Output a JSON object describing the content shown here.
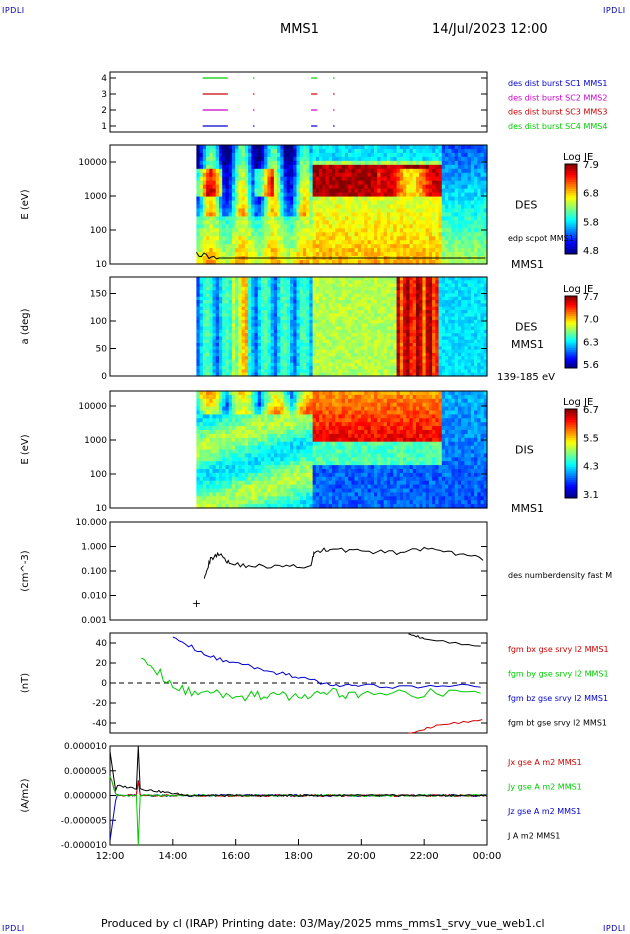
{
  "header": {
    "corner_label": "IPDLI",
    "title": "MMS1",
    "datetime": "14/Jul/2023 12:00"
  },
  "footer": {
    "text": "Produced by cl (IRAP)   Printing date: 03/May/2025   mms_mms1_srvy_vue_web1.cl"
  },
  "chart_data": [
    {
      "type": "line",
      "panel": "burst-availability",
      "yticks": [
        "1",
        "2",
        "3",
        "4"
      ],
      "x_range": [
        "12:00",
        "00:00"
      ],
      "series": [
        {
          "name": "des dist burst SC1 MMS1",
          "color": "#0000cc",
          "level": 1
        },
        {
          "name": "des dist burst SC2 MMS2",
          "color": "#cc00cc",
          "level": 2
        },
        {
          "name": "des dist burst SC3 MMS3",
          "color": "#cc0000",
          "level": 3
        },
        {
          "name": "des dist burst SC4 MMS4",
          "color": "#00cc00",
          "level": 4
        }
      ],
      "intervals_hours": [
        [
          14.95,
          15.75
        ],
        [
          16.55,
          16.6
        ],
        [
          18.4,
          18.6
        ],
        [
          19.1,
          19.15
        ]
      ]
    },
    {
      "type": "heatmap",
      "panel": "des-energy-spectrogram",
      "ylabel": "E (eV)",
      "yticks": [
        "10",
        "100",
        "1000",
        "10000"
      ],
      "ylog": true,
      "label": "DES",
      "sublabel": "MMS1",
      "overlay_label": "edp scpot MMS1",
      "colorbar": {
        "title": "Log JE",
        "ticks": [
          "7.9",
          "6.8",
          "5.8",
          "4.8"
        ],
        "min": 4.8,
        "max": 7.9
      }
    },
    {
      "type": "heatmap",
      "panel": "des-pitch-angle",
      "ylabel": "a (deg)",
      "yticks": [
        "0",
        "50",
        "100",
        "150"
      ],
      "ylim": [
        0,
        180
      ],
      "label": "DES",
      "sublabel": "MMS1",
      "energy_range": "139-185 eV",
      "colorbar": {
        "title": "Log JE",
        "ticks": [
          "7.7",
          "7.0",
          "6.3",
          "5.6"
        ],
        "min": 5.6,
        "max": 7.7
      }
    },
    {
      "type": "heatmap",
      "panel": "dis-energy-spectrogram",
      "ylabel": "E (eV)",
      "yticks": [
        "10",
        "100",
        "1000",
        "10000"
      ],
      "ylog": true,
      "label": "DIS",
      "sublabel": "MMS1",
      "colorbar": {
        "title": "Log JE",
        "ticks": [
          "6.7",
          "5.5",
          "4.3",
          "3.1"
        ],
        "min": 3.1,
        "max": 6.7
      }
    },
    {
      "type": "line",
      "panel": "density",
      "ylabel": "(cm^-3)",
      "yticks": [
        "0.001",
        "0.010",
        "0.100",
        "1.000",
        "10.000"
      ],
      "ylog": true,
      "ylim": [
        0.001,
        10
      ],
      "series": [
        {
          "name": "des numberdensity fast M",
          "color": "#000000"
        }
      ],
      "points_hours": [
        [
          15.0,
          0.06
        ],
        [
          15.2,
          0.3
        ],
        [
          15.5,
          0.55
        ],
        [
          15.8,
          0.2
        ],
        [
          16.5,
          0.16
        ],
        [
          17.5,
          0.15
        ],
        [
          18.4,
          0.16
        ],
        [
          18.5,
          0.6
        ],
        [
          19.0,
          0.8
        ],
        [
          20.0,
          0.65
        ],
        [
          21.0,
          0.55
        ],
        [
          22.0,
          0.8
        ],
        [
          23.0,
          0.5
        ],
        [
          24.0,
          0.3
        ]
      ],
      "marker": {
        "hour": 14.7,
        "value": 0.005,
        "symbol": "+"
      }
    },
    {
      "type": "line",
      "panel": "magnetic-field",
      "ylabel": "(nT)",
      "yticks": [
        "-40",
        "-20",
        "0",
        "20",
        "40"
      ],
      "ylim": [
        -50,
        50
      ],
      "series": [
        {
          "name": "fgm bx gse srvy l2 MMS1",
          "color": "#cc0000"
        },
        {
          "name": "fgm by gse srvy l2 MMS1",
          "color": "#00cc00"
        },
        {
          "name": "fgm bz gse srvy l2 MMS1",
          "color": "#0000cc"
        },
        {
          "name": "fgm bt gse srvy l2 MMS1",
          "color": "#000000"
        }
      ],
      "bz_hours": [
        [
          14.0,
          48
        ],
        [
          15.0,
          28
        ],
        [
          16.0,
          20
        ],
        [
          17.0,
          12
        ],
        [
          18.0,
          6
        ],
        [
          19.0,
          -2
        ],
        [
          20.0,
          -3
        ],
        [
          22.0,
          -4
        ],
        [
          24.0,
          -2
        ]
      ],
      "by_hours": [
        [
          13.0,
          30
        ],
        [
          14.0,
          -5
        ],
        [
          15.0,
          -10
        ],
        [
          16.0,
          -14
        ],
        [
          17.0,
          -12
        ],
        [
          18.0,
          -14
        ],
        [
          19.0,
          -10
        ],
        [
          20.0,
          -12
        ],
        [
          22.0,
          -10
        ],
        [
          24.0,
          -10
        ]
      ],
      "bt_hours": [
        [
          21.5,
          50
        ],
        [
          22.0,
          44
        ],
        [
          24.0,
          36
        ]
      ],
      "bx_hours": [
        [
          21.5,
          -50
        ],
        [
          22.5,
          -42
        ],
        [
          24.0,
          -36
        ]
      ]
    },
    {
      "type": "line",
      "panel": "current-density",
      "ylabel": "(A/m2)",
      "yticks": [
        "-0.000010",
        "-0.000005",
        "0.000000",
        "0.000005",
        "0.000010"
      ],
      "ylim": [
        -1e-05,
        1e-05
      ],
      "x": [
        "12:00",
        "14:00",
        "16:00",
        "18:00",
        "20:00",
        "22:00",
        "00:00"
      ],
      "series": [
        {
          "name": "Jx gse A m2 MMS1",
          "color": "#cc0000"
        },
        {
          "name": "Jy gse A m2 MMS1",
          "color": "#00cc00"
        },
        {
          "name": "Jz gse A m2 MMS1",
          "color": "#0000cc"
        },
        {
          "name": "J A m2 MMS1",
          "color": "#000000"
        }
      ]
    }
  ]
}
